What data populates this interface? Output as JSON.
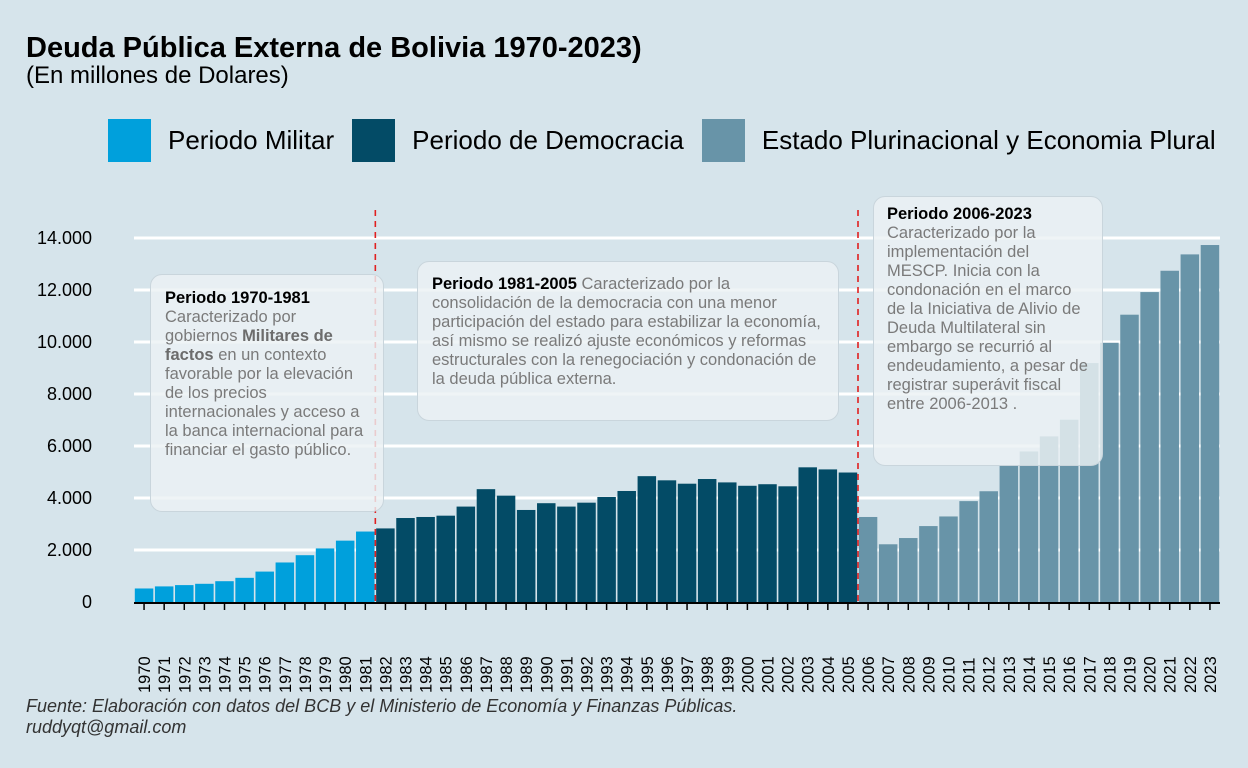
{
  "header": {
    "title": "Deuda Pública Externa de Bolivia 1970-2023)",
    "subtitle": "(En millones de Dolares)"
  },
  "legend": [
    {
      "label": "Periodo Militar",
      "color": "#00a0dc"
    },
    {
      "label": "Periodo de Democracia",
      "color": "#034b66"
    },
    {
      "label": "Estado Plurinacional y Economia Plural",
      "color": "#6894a8"
    }
  ],
  "annotations": {
    "militar": {
      "heading": "Periodo 1970-1981",
      "text_a": "Caracterizado por gobiernos ",
      "strong": "Militares de factos",
      "text_b": " en un contexto favorable por la elevación de los precios internacionales y acceso a la banca internacional para financiar el gasto público."
    },
    "democracia": {
      "heading": "Periodo 1981-2005",
      "text": " Caracterizado por la consolidación de la democracia con una menor participación del estado para estabilizar la economía, así mismo se realizó ajuste económicos y reformas estructurales con la renegociación y condonación de la deuda pública externa."
    },
    "plurinacional": {
      "heading": "Periodo 2006-2023",
      "text": "Caracterizado por la implementación del MESCP. Inicia con la condonación en el marco de la Iniciativa de Alivio de Deuda Multilateral sin embargo se recurrió al endeudamiento, a pesar de registrar superávit fiscal entre 2006-2013 ."
    }
  },
  "footer": {
    "source": "Fuente: Elaboración con datos del BCB y el Ministerio de Economía y Finanzas Públicas.",
    "email": "ruddyqt@gmail.com"
  },
  "chart_data": {
    "type": "bar",
    "title": "Deuda Pública Externa de Bolivia 1970-2023)",
    "subtitle": "(En millones de Dolares)",
    "xlabel": "",
    "ylabel": "",
    "ylim": [
      0,
      14500
    ],
    "yticks": [
      0,
      2000,
      4000,
      6000,
      8000,
      10000,
      12000,
      14000
    ],
    "ytick_labels": [
      "0",
      "2.000",
      "4.000",
      "6.000",
      "8.000",
      "10.000",
      "12.000",
      "14.000"
    ],
    "grid": true,
    "legend_position": "top",
    "categories": [
      "1970",
      "1971",
      "1972",
      "1973",
      "1974",
      "1975",
      "1976",
      "1977",
      "1978",
      "1979",
      "1980",
      "1981",
      "1982",
      "1983",
      "1984",
      "1985",
      "1986",
      "1987",
      "1988",
      "1989",
      "1990",
      "1991",
      "1992",
      "1993",
      "1994",
      "1995",
      "1996",
      "1997",
      "1998",
      "1999",
      "2000",
      "2001",
      "2002",
      "2003",
      "2004",
      "2005",
      "2006",
      "2007",
      "2008",
      "2009",
      "2010",
      "2011",
      "2012",
      "2013",
      "2014",
      "2015",
      "2016",
      "2017",
      "2018",
      "2019",
      "2020",
      "2021",
      "2022",
      "2023"
    ],
    "values": [
      520,
      600,
      650,
      700,
      800,
      930,
      1170,
      1520,
      1800,
      2060,
      2360,
      2710,
      2830,
      3230,
      3270,
      3320,
      3670,
      4340,
      4090,
      3540,
      3800,
      3670,
      3820,
      4040,
      4270,
      4840,
      4680,
      4550,
      4730,
      4600,
      4470,
      4530,
      4450,
      5180,
      5100,
      4980,
      3270,
      2220,
      2460,
      2920,
      3290,
      3880,
      4260,
      5260,
      5790,
      6370,
      7010,
      9190,
      9970,
      11050,
      11920,
      12740,
      13370,
      13730
    ],
    "period": [
      "militar",
      "militar",
      "militar",
      "militar",
      "militar",
      "militar",
      "militar",
      "militar",
      "militar",
      "militar",
      "militar",
      "militar",
      "democracia",
      "democracia",
      "democracia",
      "democracia",
      "democracia",
      "democracia",
      "democracia",
      "democracia",
      "democracia",
      "democracia",
      "democracia",
      "democracia",
      "democracia",
      "democracia",
      "democracia",
      "democracia",
      "democracia",
      "democracia",
      "democracia",
      "democracia",
      "democracia",
      "democracia",
      "democracia",
      "democracia",
      "plurinacional",
      "plurinacional",
      "plurinacional",
      "plurinacional",
      "plurinacional",
      "plurinacional",
      "plurinacional",
      "plurinacional",
      "plurinacional",
      "plurinacional",
      "plurinacional",
      "plurinacional",
      "plurinacional",
      "plurinacional",
      "plurinacional",
      "plurinacional",
      "plurinacional",
      "plurinacional"
    ],
    "period_colors": {
      "militar": "#00a0dc",
      "democracia": "#034b66",
      "plurinacional": "#6894a8"
    },
    "vlines": [
      1981.5,
      2005.5
    ],
    "vline_color": "#e02020"
  }
}
